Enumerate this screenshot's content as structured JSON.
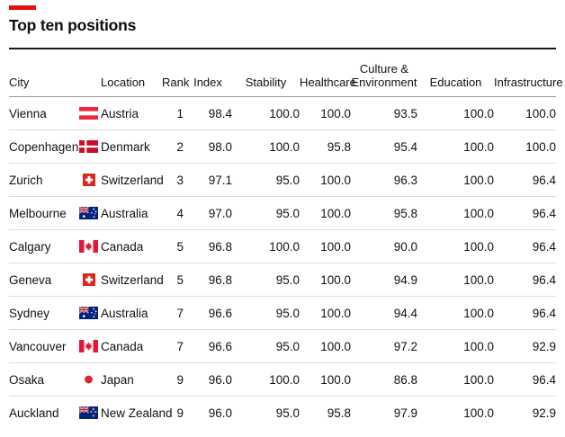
{
  "title": "Top ten positions",
  "accent_color": "#e3120b",
  "chart_data": {
    "type": "table",
    "title": "Top ten positions",
    "columns": [
      {
        "key": "city",
        "label": "City",
        "align": "left"
      },
      {
        "key": "location",
        "label": "Location",
        "align": "left"
      },
      {
        "key": "rank",
        "label": "Rank",
        "align": "center"
      },
      {
        "key": "index",
        "label": "Index",
        "align": "center"
      },
      {
        "key": "stability",
        "label": "Stability",
        "align": "center"
      },
      {
        "key": "healthcare",
        "label": "Healthcare",
        "align": "center"
      },
      {
        "key": "culture_environment",
        "label": "Culture & Environment",
        "align": "center"
      },
      {
        "key": "education",
        "label": "Education",
        "align": "center"
      },
      {
        "key": "infrastructure",
        "label": "Infrastructure",
        "align": "center"
      }
    ],
    "rows": [
      {
        "city": "Vienna",
        "flag_icon": "austria-flag-icon",
        "location": "Austria",
        "rank": "1",
        "index": "98.4",
        "stability": "100.0",
        "healthcare": "100.0",
        "culture_environment": "93.5",
        "education": "100.0",
        "infrastructure": "100.0"
      },
      {
        "city": "Copenhagen",
        "flag_icon": "denmark-flag-icon",
        "location": "Denmark",
        "rank": "2",
        "index": "98.0",
        "stability": "100.0",
        "healthcare": "95.8",
        "culture_environment": "95.4",
        "education": "100.0",
        "infrastructure": "100.0"
      },
      {
        "city": "Zurich",
        "flag_icon": "switzerland-flag-icon",
        "location": "Switzerland",
        "rank": "3",
        "index": "97.1",
        "stability": "95.0",
        "healthcare": "100.0",
        "culture_environment": "96.3",
        "education": "100.0",
        "infrastructure": "96.4"
      },
      {
        "city": "Melbourne",
        "flag_icon": "australia-flag-icon",
        "location": "Australia",
        "rank": "4",
        "index": "97.0",
        "stability": "95.0",
        "healthcare": "100.0",
        "culture_environment": "95.8",
        "education": "100.0",
        "infrastructure": "96.4"
      },
      {
        "city": "Calgary",
        "flag_icon": "canada-flag-icon",
        "location": "Canada",
        "rank": "5",
        "index": "96.8",
        "stability": "100.0",
        "healthcare": "100.0",
        "culture_environment": "90.0",
        "education": "100.0",
        "infrastructure": "96.4"
      },
      {
        "city": "Geneva",
        "flag_icon": "switzerland-flag-icon",
        "location": "Switzerland",
        "rank": "5",
        "index": "96.8",
        "stability": "95.0",
        "healthcare": "100.0",
        "culture_environment": "94.9",
        "education": "100.0",
        "infrastructure": "96.4"
      },
      {
        "city": "Sydney",
        "flag_icon": "australia-flag-icon",
        "location": "Australia",
        "rank": "7",
        "index": "96.6",
        "stability": "95.0",
        "healthcare": "100.0",
        "culture_environment": "94.4",
        "education": "100.0",
        "infrastructure": "96.4"
      },
      {
        "city": "Vancouver",
        "flag_icon": "canada-flag-icon",
        "location": "Canada",
        "rank": "7",
        "index": "96.6",
        "stability": "95.0",
        "healthcare": "100.0",
        "culture_environment": "97.2",
        "education": "100.0",
        "infrastructure": "92.9"
      },
      {
        "city": "Osaka",
        "flag_icon": "japan-flag-icon",
        "location": "Japan",
        "rank": "9",
        "index": "96.0",
        "stability": "100.0",
        "healthcare": "100.0",
        "culture_environment": "86.8",
        "education": "100.0",
        "infrastructure": "96.4"
      },
      {
        "city": "Auckland",
        "flag_icon": "new-zealand-flag-icon",
        "location": "New Zealand",
        "rank": "9",
        "index": "96.0",
        "stability": "95.0",
        "healthcare": "95.8",
        "culture_environment": "97.9",
        "education": "100.0",
        "infrastructure": "92.9"
      }
    ]
  }
}
